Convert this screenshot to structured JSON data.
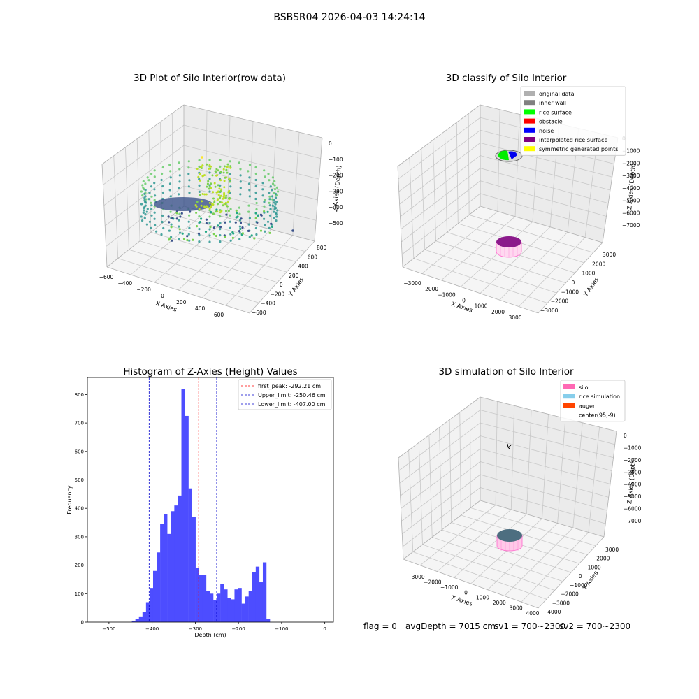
{
  "suptitle": "BSBSR04 2026-04-03 14:24:14",
  "status": {
    "flag": "flag = 0",
    "avg_depth": "avgDepth = 7015 cm",
    "sv1": "sv1 = 700~2300",
    "sv2": "sv2 = 700~2300"
  },
  "chart_data": [
    {
      "type": "scatter",
      "projection": "3d",
      "title": "3D Plot of Silo Interior(row data)",
      "xlabel": "X Axies",
      "ylabel": "Y Axies",
      "zlabel": "Z Axies (Depth)",
      "x_ticks": [
        "−600",
        "−400",
        "−200",
        "0",
        "200",
        "400",
        "600"
      ],
      "y_ticks": [
        "−600",
        "−400",
        "−200",
        "0",
        "200",
        "400",
        "600",
        "800"
      ],
      "z_ticks": [
        "0",
        "−100",
        "−200",
        "−300",
        "−400",
        "−500"
      ],
      "colormap": "viridis"
    },
    {
      "type": "scatter",
      "projection": "3d",
      "title": "3D classify of Silo Interior",
      "xlabel": "X Axies",
      "ylabel": "Y Axies",
      "zlabel": "Z Axies (Depth)",
      "x_ticks": [
        "−3000",
        "−2000",
        "−1000",
        "0",
        "1000",
        "2000",
        "3000"
      ],
      "y_ticks": [
        "−3000",
        "−2000",
        "−1000",
        "0",
        "1000",
        "2000",
        "3000"
      ],
      "z_ticks": [
        "0",
        "−1000",
        "−2000",
        "−3000",
        "−4000",
        "−5000",
        "−6000",
        "−7000"
      ],
      "legend_position": "top-right",
      "legend": [
        {
          "label": "original data",
          "color": "#b0b0b0"
        },
        {
          "label": "inner wall",
          "color": "#808080"
        },
        {
          "label": "rice surface",
          "color": "#00ff00"
        },
        {
          "label": "obstacle",
          "color": "#ff0000"
        },
        {
          "label": "noise",
          "color": "#0000ff"
        },
        {
          "label": "interpolated rice surface",
          "color": "#800080"
        },
        {
          "label": "symmetric generated points",
          "color": "#ffff00"
        }
      ]
    },
    {
      "type": "bar",
      "title": "Histogram of Z-Axies (Height) Values",
      "xlabel": "Depth (cm)",
      "ylabel": "Frequency",
      "xlim": [
        -550,
        20
      ],
      "ylim": [
        0,
        860
      ],
      "x_ticks": [
        "−500",
        "−400",
        "−300",
        "−200",
        "−100",
        "0"
      ],
      "y_ticks": [
        "0",
        "100",
        "200",
        "300",
        "400",
        "500",
        "600",
        "700",
        "800"
      ],
      "bar_color": "#4d4dff",
      "bin_width": 8.2,
      "bin_start": -447,
      "values": [
        5,
        12,
        20,
        35,
        70,
        120,
        180,
        245,
        345,
        380,
        310,
        390,
        410,
        445,
        820,
        725,
        470,
        370,
        190,
        165,
        165,
        110,
        100,
        78,
        100,
        135,
        115,
        85,
        80,
        115,
        120,
        65,
        90,
        110,
        175,
        195,
        140,
        210,
        10
      ],
      "reference_lines": [
        {
          "label": "first_peak: -292.21 cm",
          "x": -292.21,
          "color": "#ff0000"
        },
        {
          "label": "Upper_limit: -250.46 cm",
          "x": -250.46,
          "color": "#0000cc"
        },
        {
          "label": "Lower_limit: -407.00 cm",
          "x": -407.0,
          "color": "#0000cc"
        }
      ],
      "legend_position": "top-right"
    },
    {
      "type": "scatter",
      "projection": "3d",
      "title": "3D simulation of Silo Interior",
      "xlabel": "X Axies",
      "ylabel": "Y Axies",
      "zlabel": "Z Axies (Depth)",
      "x_ticks": [
        "−3000",
        "−2000",
        "−1000",
        "0",
        "1000",
        "2000",
        "3000",
        "4000"
      ],
      "y_ticks": [
        "−4000",
        "−3000",
        "−2000",
        "−1000",
        "0",
        "1000",
        "2000",
        "3000"
      ],
      "z_ticks": [
        "0",
        "−1000",
        "−2000",
        "−3000",
        "−4000",
        "−5000",
        "−6000",
        "−7000"
      ],
      "legend_position": "top-right",
      "legend": [
        {
          "label": "silo",
          "color": "#ff69b4"
        },
        {
          "label": "rice simulation",
          "color": "#87ceeb"
        },
        {
          "label": "auger",
          "color": "#ff4500"
        },
        {
          "label": "center(95,-9)",
          "color": ""
        }
      ]
    }
  ]
}
